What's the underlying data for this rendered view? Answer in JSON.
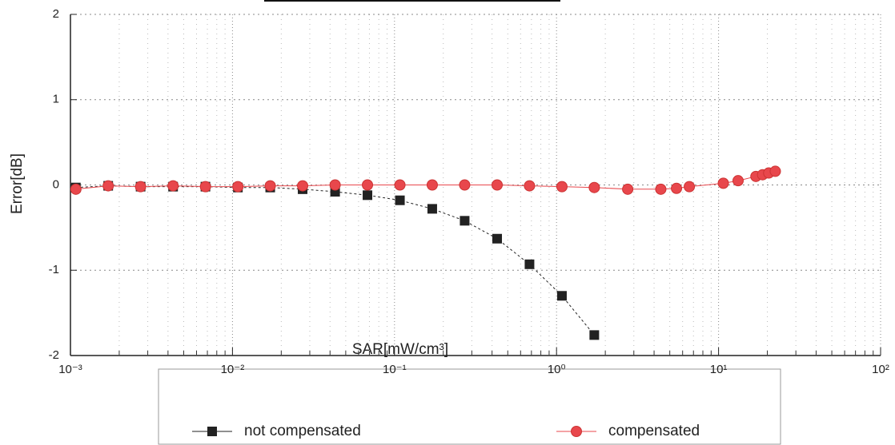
{
  "chart_data": {
    "type": "scatter",
    "x_label": "SAR[mW/cm³]",
    "y_label": "Error[dB]",
    "x_log": true,
    "grid": true,
    "legend": "bottom",
    "xlim": [
      0.001,
      100
    ],
    "ylim": [
      -2,
      2
    ],
    "xticks": [
      {
        "value": 0.001,
        "label": "10⁻³"
      },
      {
        "value": 0.01,
        "label": "10⁻²"
      },
      {
        "value": 0.1,
        "label": "10⁻¹"
      },
      {
        "value": 1,
        "label": "10⁰"
      },
      {
        "value": 10,
        "label": "10¹"
      },
      {
        "value": 100,
        "label": "10²"
      }
    ],
    "yticks": [
      -2,
      -1,
      0,
      1,
      2
    ],
    "series": [
      {
        "name": "not compensated",
        "color": "#222222",
        "marker": "square",
        "x": [
          0.00108,
          0.00171,
          0.00271,
          0.0043,
          0.00681,
          0.0108,
          0.0171,
          0.0271,
          0.043,
          0.0681,
          0.108,
          0.171,
          0.271,
          0.43,
          0.681,
          1.08,
          1.71
        ],
        "values": [
          -0.03,
          -0.01,
          -0.02,
          -0.02,
          -0.02,
          -0.03,
          -0.03,
          -0.05,
          -0.08,
          -0.12,
          -0.18,
          -0.28,
          -0.42,
          -0.63,
          -0.93,
          -1.3,
          -1.76
        ]
      },
      {
        "name": "compensated",
        "color": "#e8474c",
        "marker": "circle",
        "x": [
          0.00108,
          0.00171,
          0.00271,
          0.0043,
          0.00681,
          0.0108,
          0.0171,
          0.0271,
          0.043,
          0.0681,
          0.108,
          0.171,
          0.271,
          0.43,
          0.681,
          1.08,
          1.71,
          2.75,
          4.4,
          5.5,
          6.6,
          10.7,
          13.2,
          17,
          18.7,
          20.4,
          22.4
        ],
        "values": [
          -0.05,
          -0.01,
          -0.02,
          -0.01,
          -0.02,
          -0.02,
          -0.01,
          -0.01,
          0,
          0,
          0,
          0,
          0,
          0,
          -0.01,
          -0.02,
          -0.03,
          -0.05,
          -0.05,
          -0.04,
          -0.02,
          0.02,
          0.05,
          0.1,
          0.12,
          0.14,
          0.16
        ]
      }
    ]
  }
}
